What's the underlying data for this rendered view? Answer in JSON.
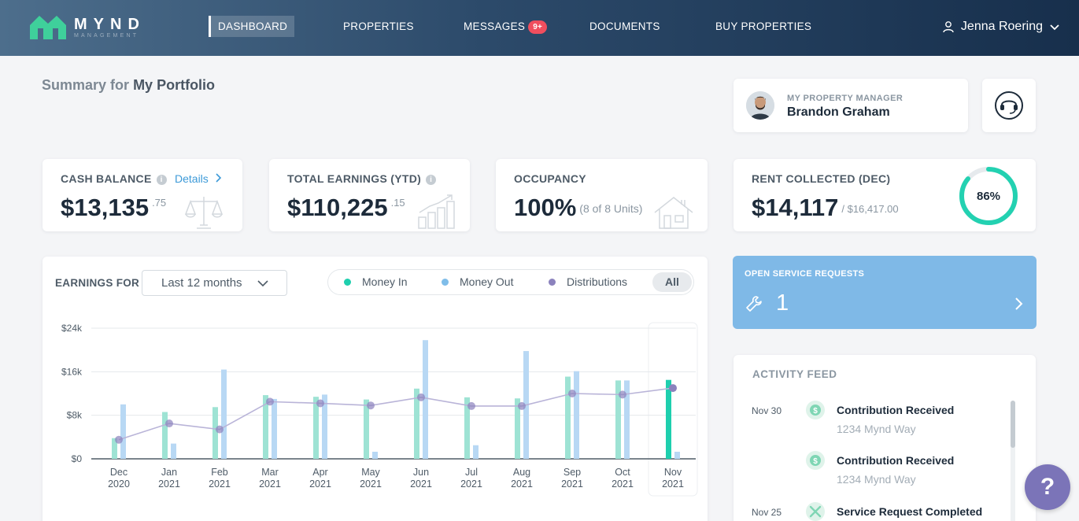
{
  "header": {
    "logo_text": "MYND",
    "logo_sub": "MANAGEMENT",
    "nav": [
      {
        "label": "DASHBOARD"
      },
      {
        "label": "PROPERTIES"
      },
      {
        "label": "MESSAGES",
        "badge": "9+"
      },
      {
        "label": "DOCUMENTS"
      },
      {
        "label": "BUY PROPERTIES"
      }
    ],
    "user_name": "Jenna Roering"
  },
  "summary": {
    "prefix": "Summary for",
    "portfolio": "My Portfolio"
  },
  "property_manager": {
    "label": "MY PROPERTY MANAGER",
    "name": "Brandon Graham"
  },
  "stats": {
    "cash_balance": {
      "label": "CASH BALANCE",
      "link": "Details",
      "value": "$13,135",
      "cents": ".75"
    },
    "total_earnings": {
      "label": "TOTAL EARNINGS (YTD)",
      "value": "$110,225",
      "cents": ".15"
    },
    "occupancy": {
      "label": "OCCUPANCY",
      "value": "100%",
      "sub": "(8 of 8 Units)"
    },
    "rent_collected": {
      "label": "RENT COLLECTED (DEC)",
      "value": "$14,117",
      "sub": "/ $16,417.00",
      "percent_label": "86%",
      "percent": 86
    }
  },
  "earnings": {
    "label": "EARNINGS FOR",
    "range": "Last 12 months",
    "legend": {
      "money_in": "Money In",
      "money_out": "Money Out",
      "distributions": "Distributions",
      "all": "All"
    }
  },
  "colors": {
    "money_in": "#9ee3d4",
    "money_in_active": "#1ecfae",
    "money_out": "#b8d8f4",
    "distributions": "#8b82bd",
    "ring": "#23d1b1"
  },
  "chart_data": {
    "type": "bar",
    "y_ticks": [
      "$24k",
      "$16k",
      "$8k",
      "$0"
    ],
    "ylim": [
      0,
      24000
    ],
    "categories": [
      {
        "month": "Dec",
        "year": "2020"
      },
      {
        "month": "Jan",
        "year": "2021"
      },
      {
        "month": "Feb",
        "year": "2021"
      },
      {
        "month": "Mar",
        "year": "2021"
      },
      {
        "month": "Apr",
        "year": "2021"
      },
      {
        "month": "May",
        "year": "2021"
      },
      {
        "month": "Jun",
        "year": "2021"
      },
      {
        "month": "Jul",
        "year": "2021"
      },
      {
        "month": "Aug",
        "year": "2021"
      },
      {
        "month": "Sep",
        "year": "2021"
      },
      {
        "month": "Oct",
        "year": "2021"
      },
      {
        "month": "Nov",
        "year": "2021"
      }
    ],
    "series": [
      {
        "name": "Money In",
        "type": "bar",
        "values": [
          3800,
          8600,
          9500,
          11700,
          11400,
          10900,
          12900,
          11300,
          11100,
          15100,
          14400,
          14500
        ]
      },
      {
        "name": "Money Out",
        "type": "bar",
        "values": [
          10000,
          2800,
          16400,
          11000,
          11800,
          1300,
          21800,
          2500,
          19800,
          16100,
          14400,
          1300
        ]
      },
      {
        "name": "Distributions",
        "type": "line",
        "values": [
          3500,
          6500,
          5400,
          10500,
          10200,
          9800,
          11300,
          9700,
          9700,
          12000,
          11800,
          13000
        ]
      }
    ],
    "highlight_index": 11
  },
  "service_requests": {
    "label": "OPEN SERVICE REQUESTS",
    "count": "1"
  },
  "activity_feed": {
    "title": "ACTIVITY FEED",
    "items": [
      {
        "date": "Nov 30",
        "title": "Contribution Received",
        "sub": "1234 Mynd Way"
      },
      {
        "date": "",
        "title": "Contribution Received",
        "sub": "1234 Mynd Way"
      },
      {
        "date": "Nov 25",
        "title": "Service Request Completed",
        "sub": ""
      }
    ]
  },
  "help": {
    "label": "?"
  }
}
